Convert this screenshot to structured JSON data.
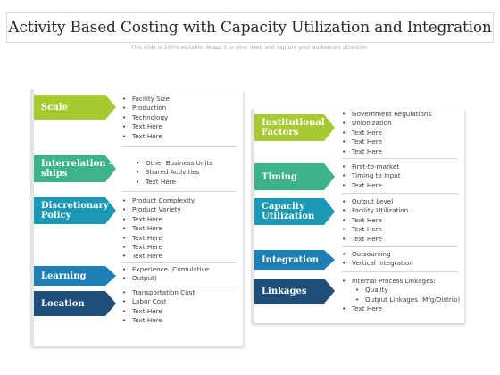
{
  "title": "Activity Based Costing with Capacity Utilization and Integration",
  "subtitle": "This slide is 100% editable. Adapt it to your need and capture your audience's attention.",
  "left": [
    {
      "label": "Scale",
      "color": "#a7c932",
      "items": [
        {
          "text": "Facility Size"
        },
        {
          "text": "Production"
        },
        {
          "text": "Technology"
        },
        {
          "text": "Text Here"
        },
        {
          "text": "Text Here"
        }
      ]
    },
    {
      "label": "Interrelation -ships",
      "color": "#3cb389",
      "items": [
        {
          "text": "Other Business Units"
        },
        {
          "text": "Shared Activities"
        },
        {
          "text": "Text Here"
        }
      ]
    },
    {
      "label": "Discretionary Policy",
      "color": "#1a98b6",
      "items": [
        {
          "text": "Product Complexity"
        },
        {
          "text": "Product Variety"
        },
        {
          "text": "Text Here"
        },
        {
          "text": "Text Here"
        },
        {
          "text": "Text Here"
        },
        {
          "text": "Text Here"
        },
        {
          "text": "Text Here"
        }
      ]
    },
    {
      "label": "Learning",
      "color": "#1d7fb4",
      "items": [
        {
          "text": "Experience (Cumulative"
        },
        {
          "text": "Output)"
        }
      ]
    },
    {
      "label": "Location",
      "color": "#1f4f78",
      "items": [
        {
          "text": "Transportation Cost"
        },
        {
          "text": "Labor Cost"
        },
        {
          "text": "Text Here"
        },
        {
          "text": "Text Here"
        }
      ]
    }
  ],
  "right": [
    {
      "label": "Institutional Factors",
      "color": "#a7c932",
      "items": [
        {
          "text": "Government Regulations"
        },
        {
          "text": "Unionization"
        },
        {
          "text": "Text Here"
        },
        {
          "text": "Text Here"
        },
        {
          "text": "Text Here"
        }
      ]
    },
    {
      "label": "Timing",
      "color": "#3cb389",
      "items": [
        {
          "text": "First-to-market"
        },
        {
          "text": "Timing to Input"
        },
        {
          "text": "Text Here"
        }
      ]
    },
    {
      "label": "Capacity Utilization",
      "color": "#1a98b6",
      "items": [
        {
          "text": "Output Level"
        },
        {
          "text": "Facility Utilization"
        },
        {
          "text": "Text Here"
        },
        {
          "text": "Text Here"
        },
        {
          "text": "Text Here"
        }
      ]
    },
    {
      "label": "Integration",
      "color": "#1d7fb4",
      "items": [
        {
          "text": "Outsourcing"
        },
        {
          "text": "Vertical Integration"
        }
      ]
    },
    {
      "label": "Linkages",
      "color": "#1f4f78",
      "items": [
        {
          "text": "Internal Process Linkages:"
        },
        {
          "text": "Quality",
          "sub": true
        },
        {
          "text": "Output Linkages (Mfg/Distrib)",
          "sub": true
        },
        {
          "text": "Text Here"
        }
      ]
    }
  ]
}
